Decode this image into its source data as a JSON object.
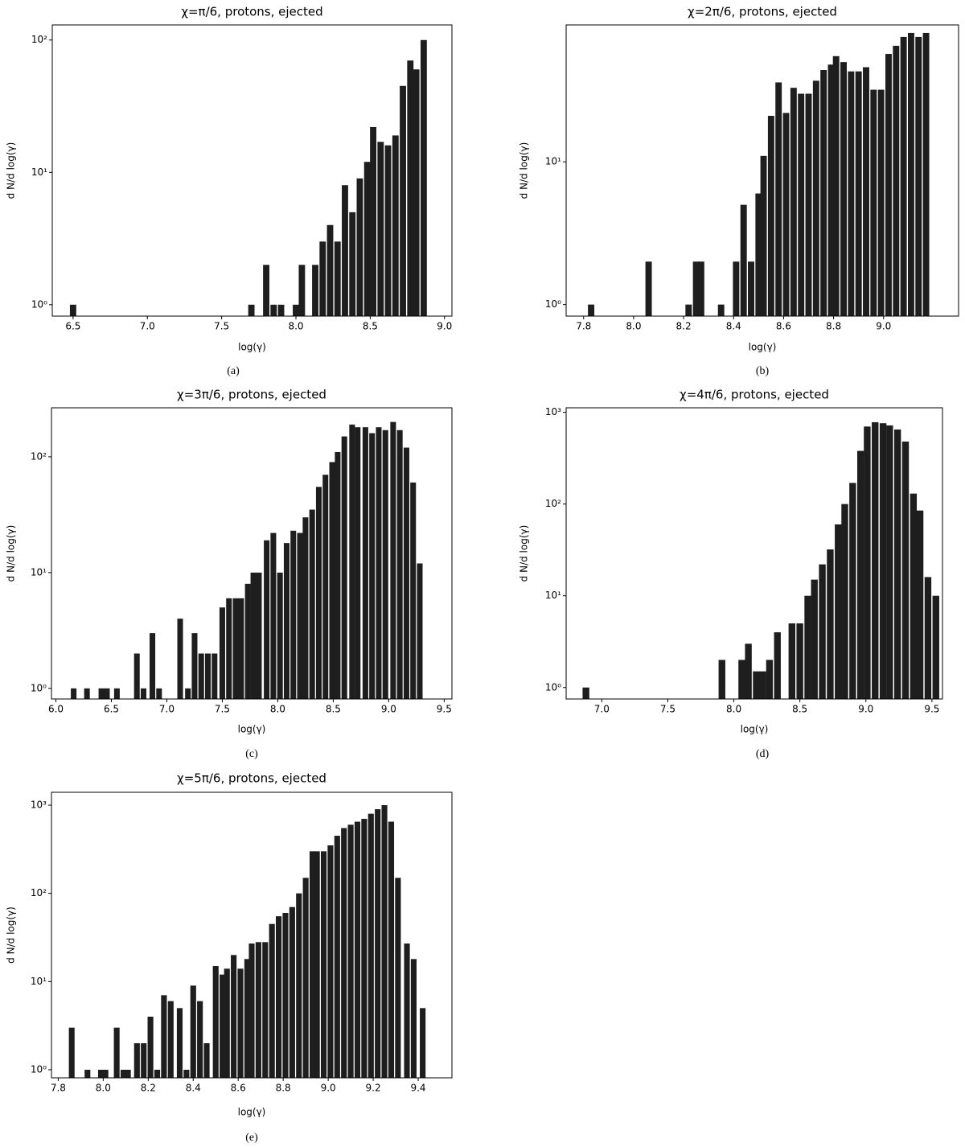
{
  "chart_data": [
    {
      "type": "bar",
      "title": "χ=π/6, protons, ejected",
      "x_label": "log(γ)",
      "y_label": "d N/d log(γ)",
      "caption": "(a)",
      "color": "#1e1e1e",
      "log_y": true,
      "x": [
        6.5,
        7.7,
        7.8,
        7.85,
        7.9,
        8.0,
        8.04,
        8.13,
        8.18,
        8.23,
        8.28,
        8.33,
        8.38,
        8.43,
        8.48,
        8.52,
        8.57,
        8.62,
        8.67,
        8.72,
        8.77,
        8.81,
        8.86
      ],
      "values": [
        1,
        1,
        2,
        1,
        1,
        1,
        2,
        2,
        3,
        4,
        3,
        8,
        5,
        9,
        12,
        22,
        17,
        16,
        19,
        45,
        70,
        60,
        100
      ],
      "xlim": [
        6.36,
        9.05
      ],
      "xticks": [
        6.5,
        {
          "value": 7,
          "label": "7.0"
        },
        7.5,
        {
          "value": 8,
          "label": "8.0"
        },
        8.5,
        {
          "value": 9,
          "label": "9.0"
        }
      ],
      "ylim": [
        0.82,
        130
      ],
      "yticks": [
        {
          "value": 1,
          "label": "10⁰"
        },
        {
          "value": 10,
          "label": "10¹"
        },
        {
          "value": 100,
          "label": "10²"
        }
      ]
    },
    {
      "type": "bar",
      "title": "χ=2π/6, protons, ejected",
      "x_label": "log(γ)",
      "y_label": "d N/d log(γ)",
      "caption": "(b)",
      "color": "#1e1e1e",
      "log_y": true,
      "x": [
        7.83,
        8.06,
        8.22,
        8.25,
        8.27,
        8.35,
        8.41,
        8.44,
        8.47,
        8.5,
        8.52,
        8.55,
        8.58,
        8.61,
        8.64,
        8.67,
        8.7,
        8.73,
        8.76,
        8.79,
        8.81,
        8.84,
        8.87,
        8.9,
        8.93,
        8.96,
        8.99,
        9.02,
        9.05,
        9.08,
        9.11,
        9.14,
        9.17
      ],
      "values": [
        1,
        2,
        1,
        2,
        2,
        1,
        2,
        5,
        2,
        6,
        11,
        21,
        36,
        22,
        33,
        30,
        30,
        37,
        44,
        48,
        55,
        50,
        43,
        43,
        46,
        32,
        32,
        57,
        65,
        75,
        80,
        75,
        80
      ],
      "xlim": [
        7.73,
        9.3
      ],
      "xticks": [
        7.8,
        {
          "value": 8,
          "label": "8.0"
        },
        8.2,
        8.4,
        8.6,
        8.8,
        {
          "value": 9,
          "label": "9.0"
        }
      ],
      "ylim": [
        0.83,
        91
      ],
      "yticks": [
        {
          "value": 1,
          "label": "10⁰"
        },
        {
          "value": 10,
          "label": "10¹"
        }
      ]
    },
    {
      "type": "bar",
      "title": "χ=3π/6, protons, ejected",
      "x_label": "log(γ)",
      "y_label": "d N/d log(γ)",
      "caption": "(c)",
      "color": "#1e1e1e",
      "log_y": true,
      "x": [
        6.16,
        6.28,
        6.41,
        6.46,
        6.55,
        6.73,
        6.79,
        6.87,
        6.93,
        7.12,
        7.19,
        7.25,
        7.31,
        7.37,
        7.43,
        7.5,
        7.56,
        7.62,
        7.67,
        7.73,
        7.78,
        7.83,
        7.9,
        7.96,
        8.02,
        8.08,
        8.14,
        8.2,
        8.25,
        8.31,
        8.37,
        8.43,
        8.49,
        8.54,
        8.6,
        8.67,
        8.72,
        8.79,
        8.85,
        8.91,
        8.97,
        9.04,
        9.1,
        9.16,
        9.22,
        9.28
      ],
      "values": [
        1,
        1,
        1,
        1,
        1,
        2,
        1,
        3,
        1,
        4,
        1,
        3,
        2,
        2,
        2,
        5,
        6,
        6,
        6,
        8,
        10,
        10,
        19,
        22,
        10,
        18,
        23,
        22,
        30,
        35,
        55,
        70,
        90,
        110,
        150,
        190,
        180,
        180,
        160,
        180,
        170,
        200,
        170,
        120,
        60,
        12
      ],
      "xlim": [
        5.96,
        9.57
      ],
      "xticks": [
        {
          "value": 6,
          "label": "6.0"
        },
        6.5,
        {
          "value": 7,
          "label": "7.0"
        },
        7.5,
        {
          "value": 8,
          "label": "8.0"
        },
        8.5,
        {
          "value": 9,
          "label": "9.0"
        },
        9.5
      ],
      "ylim": [
        0.81,
        265
      ],
      "yticks": [
        {
          "value": 1,
          "label": "10⁰"
        },
        {
          "value": 10,
          "label": "10¹"
        },
        {
          "value": 100,
          "label": "10²"
        }
      ]
    },
    {
      "type": "bar",
      "title": "χ=4π/6, protons, ejected",
      "x_label": "log(γ)",
      "y_label": "d N/d log(γ)",
      "caption": "(d)",
      "color": "#1e1e1e",
      "log_y": true,
      "x": [
        6.88,
        7.91,
        8.06,
        8.11,
        8.17,
        8.22,
        8.27,
        8.33,
        8.44,
        8.5,
        8.56,
        8.61,
        8.67,
        8.73,
        8.79,
        8.84,
        8.9,
        8.96,
        9.01,
        9.07,
        9.13,
        9.18,
        9.24,
        9.3,
        9.36,
        9.41,
        9.47,
        9.53
      ],
      "values": [
        1,
        2,
        2,
        3,
        1.5,
        1.5,
        2,
        4,
        5,
        5,
        10,
        15,
        22,
        32,
        60,
        100,
        170,
        380,
        700,
        780,
        760,
        720,
        650,
        480,
        130,
        85,
        16,
        10
      ],
      "xlim": [
        6.73,
        9.58
      ],
      "xticks": [
        {
          "value": 7,
          "label": "7.0"
        },
        7.5,
        {
          "value": 8,
          "label": "8.0"
        },
        8.5,
        {
          "value": 9,
          "label": "9.0"
        },
        9.5
      ],
      "ylim": [
        0.75,
        1120
      ],
      "yticks": [
        {
          "value": 1,
          "label": "10⁰"
        },
        {
          "value": 10,
          "label": "10¹"
        },
        {
          "value": 100,
          "label": "10²"
        },
        {
          "value": 1000,
          "label": "10³"
        }
      ]
    },
    {
      "type": "bar",
      "title": "χ=5π/6, protons, ejected",
      "x_label": "log(γ)",
      "y_label": "d N/d log(γ)",
      "caption": "(e)",
      "color": "#1e1e1e",
      "log_y": true,
      "x": [
        7.86,
        7.93,
        7.99,
        8.01,
        8.06,
        8.09,
        8.11,
        8.15,
        8.18,
        8.21,
        8.24,
        8.27,
        8.3,
        8.34,
        8.37,
        8.4,
        8.43,
        8.46,
        8.5,
        8.53,
        8.55,
        8.58,
        8.61,
        8.64,
        8.66,
        8.69,
        8.72,
        8.75,
        8.78,
        8.81,
        8.84,
        8.87,
        8.9,
        8.93,
        8.95,
        8.98,
        9.01,
        9.04,
        9.07,
        9.1,
        9.13,
        9.16,
        9.19,
        9.22,
        9.25,
        9.28,
        9.31,
        9.35,
        9.38,
        9.42
      ],
      "values": [
        3,
        1,
        1,
        1,
        3,
        1,
        1,
        2,
        2,
        4,
        1,
        7,
        6,
        5,
        1,
        9,
        6,
        2,
        15,
        12,
        14,
        20,
        14,
        18,
        27,
        28,
        28,
        45,
        55,
        60,
        70,
        100,
        150,
        300,
        300,
        300,
        350,
        450,
        550,
        600,
        650,
        700,
        800,
        900,
        1000,
        650,
        150,
        27,
        18,
        5
      ],
      "xlim": [
        7.77,
        9.55
      ],
      "xticks": [
        7.8,
        {
          "value": 8,
          "label": "8.0"
        },
        8.2,
        8.4,
        8.6,
        8.8,
        {
          "value": 9,
          "label": "9.0"
        },
        9.2,
        9.4
      ],
      "ylim": [
        0.81,
        1400
      ],
      "yticks": [
        {
          "value": 1,
          "label": "10⁰"
        },
        {
          "value": 10,
          "label": "10¹"
        },
        {
          "value": 100,
          "label": "10²"
        },
        {
          "value": 1000,
          "label": "10³"
        }
      ]
    }
  ]
}
